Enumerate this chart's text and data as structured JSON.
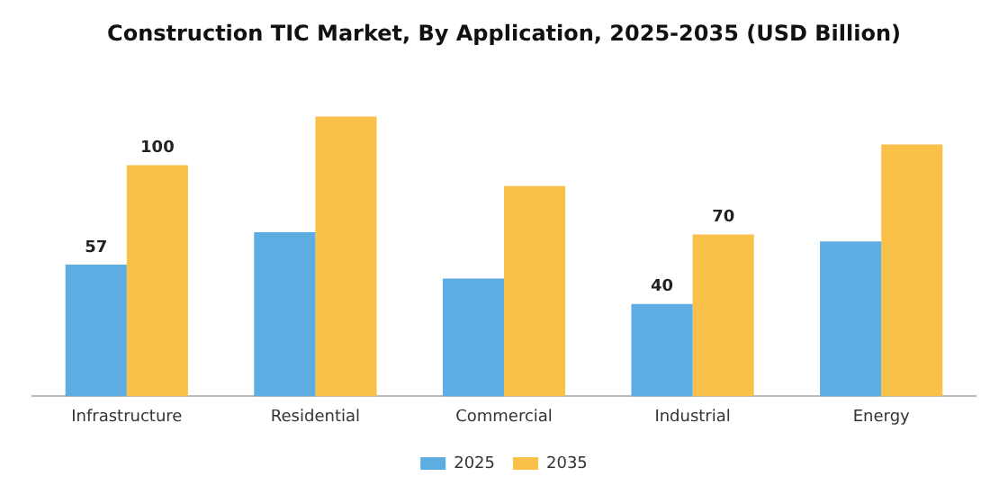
{
  "chart_data": {
    "type": "bar",
    "title": "Construction TIC Market, By Application, 2025-2035 (USD Billion)",
    "categories": [
      "Infrastructure",
      "Residential",
      "Commercial",
      "Industrial",
      "Energy"
    ],
    "series": [
      {
        "name": "2025",
        "color": "#5dade2",
        "values": [
          57,
          71,
          51,
          40,
          67
        ],
        "value_labels": [
          "57",
          null,
          null,
          "40",
          null
        ]
      },
      {
        "name": "2035",
        "color": "#f9c04a",
        "values": [
          100,
          121,
          91,
          70,
          109
        ],
        "value_labels": [
          "100",
          null,
          null,
          "70",
          null
        ]
      }
    ],
    "legend": "bottom",
    "grid": false
  }
}
